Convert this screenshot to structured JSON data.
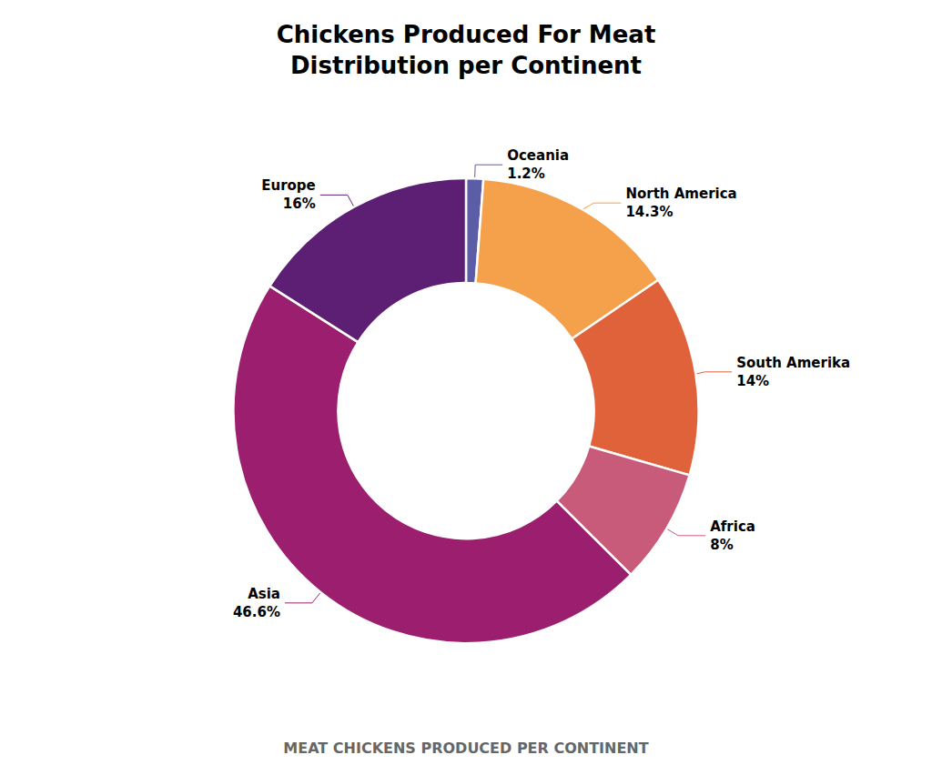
{
  "chart_data": {
    "type": "pie",
    "title": "Chickens Produced For Meat\nDistribution per Continent",
    "categories": [
      "Oceania",
      "North America",
      "South Amerika",
      "Africa",
      "Asia",
      "Europe"
    ],
    "values": [
      1.2,
      14.3,
      14.0,
      8.0,
      46.6,
      16.0
    ],
    "value_labels": [
      "1.2%",
      "14.3%",
      "14%",
      "8%",
      "46.6%",
      "16%"
    ],
    "colors": [
      "#5b5ea6",
      "#f5a04a",
      "#e0623a",
      "#c95b7a",
      "#9b1f6e",
      "#5c1f73"
    ],
    "data_labels": true,
    "annotations": [
      "MEAT CHICKENS PRODUCED PER CONTINENT"
    ]
  }
}
